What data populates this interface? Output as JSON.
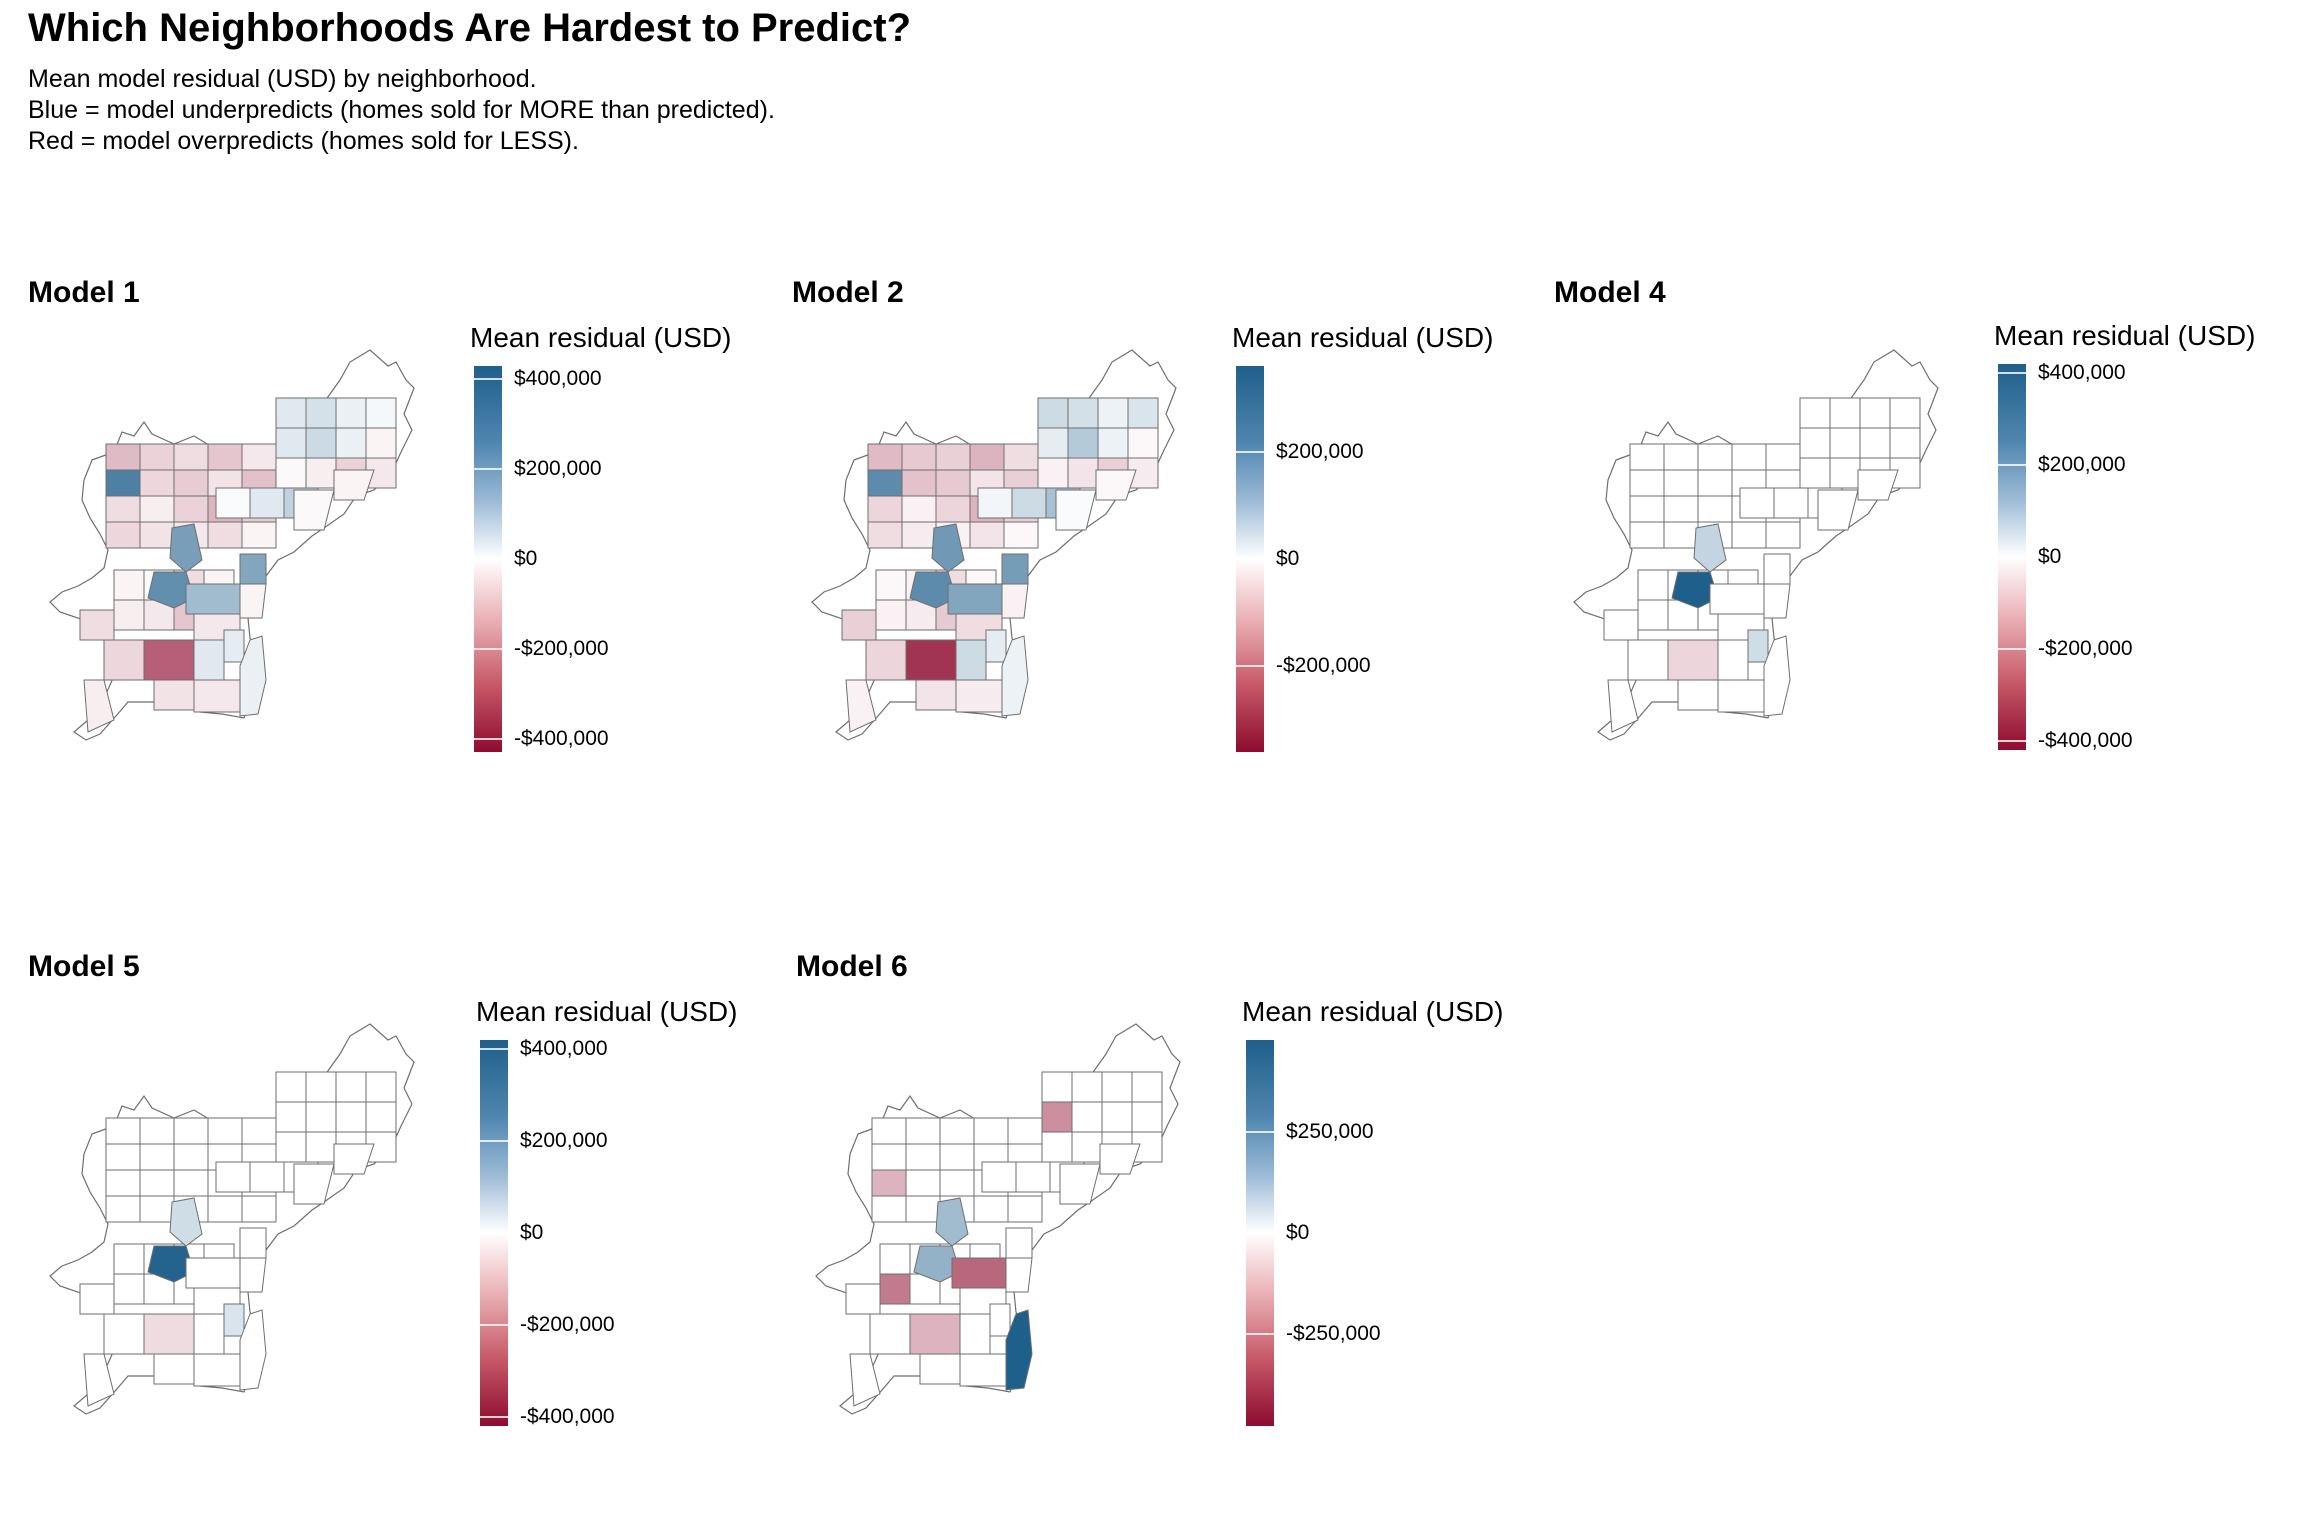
{
  "title": "Which Neighborhoods Are Hardest to Predict?",
  "subtitle": [
    "Mean model residual (USD) by neighborhood.",
    "Blue = model underpredicts (homes sold for MORE than predicted).",
    "Red = model overpredicts (homes sold for LESS)."
  ],
  "colors": {
    "positive": "#1f5f8b",
    "zero": "#ffffff",
    "negative": "#8e0b2f",
    "border": "#6e6e6e"
  },
  "panels": [
    {
      "title": "Model 1",
      "legend_title": "Mean residual (USD)",
      "scale_range": [
        -430000,
        430000
      ],
      "ticks": [
        {
          "value": 400000,
          "label": "$400,000"
        },
        {
          "value": 200000,
          "label": "$200,000"
        },
        {
          "value": 0,
          "label": "$0"
        },
        {
          "value": -200000,
          "label": "-$200,000"
        },
        {
          "value": -400000,
          "label": "-$400,000"
        }
      ],
      "region_residuals": [
        -120000,
        -80000,
        -60000,
        -100000,
        -40000,
        340000,
        -70000,
        -90000,
        -50000,
        -110000,
        -60000,
        -30000,
        -80000,
        -130000,
        -90000,
        -70000,
        -50000,
        -40000,
        -60000,
        -20000,
        60000,
        80000,
        40000,
        20000,
        60000,
        100000,
        40000,
        -20000,
        -10000,
        -30000,
        -80000,
        -40000,
        -20000,
        -10000,
        -60000,
        -20000,
        -30000,
        -40000,
        -100000,
        -20000,
        10000,
        60000,
        120000,
        260000,
        300000,
        240000,
        180000,
        -40000,
        -60000,
        -20000,
        50000,
        40000,
        -280000,
        60000,
        -70000,
        -50000,
        -40000,
        -30000,
        -20000,
        -10000
      ]
    },
    {
      "title": "Model 2",
      "legend_title": "Mean residual (USD)",
      "scale_range": [
        -360000,
        360000
      ],
      "ticks": [
        {
          "value": 200000,
          "label": "$200,000"
        },
        {
          "value": 0,
          "label": "$0"
        },
        {
          "value": -200000,
          "label": "-$200,000"
        }
      ],
      "region_residuals": [
        -100000,
        -80000,
        -70000,
        -110000,
        -50000,
        260000,
        -90000,
        -80000,
        -40000,
        -70000,
        -60000,
        -20000,
        -60000,
        -110000,
        -70000,
        -50000,
        -30000,
        -20000,
        -40000,
        -10000,
        80000,
        70000,
        30000,
        60000,
        40000,
        120000,
        30000,
        -10000,
        -20000,
        -40000,
        -70000,
        -30000,
        -10000,
        -20000,
        -50000,
        -10000,
        -20000,
        -30000,
        -80000,
        -10000,
        20000,
        80000,
        140000,
        230000,
        260000,
        220000,
        200000,
        -50000,
        -70000,
        -20000,
        40000,
        30000,
        -300000,
        80000,
        -60000,
        -40000,
        -30000,
        -20000,
        -10000,
        10000
      ]
    },
    {
      "title": "Model 4",
      "legend_title": "Mean residual (USD)",
      "scale_range": [
        -420000,
        420000
      ],
      "ticks": [
        {
          "value": 400000,
          "label": "$400,000"
        },
        {
          "value": 200000,
          "label": "$200,000"
        },
        {
          "value": 0,
          "label": "$0"
        },
        {
          "value": -200000,
          "label": "-$200,000"
        },
        {
          "value": -400000,
          "label": "-$400,000"
        }
      ],
      "region_residuals": [
        0,
        0,
        0,
        0,
        0,
        0,
        0,
        0,
        0,
        0,
        0,
        0,
        0,
        0,
        0,
        0,
        0,
        0,
        0,
        0,
        0,
        0,
        0,
        0,
        0,
        0,
        0,
        0,
        0,
        0,
        0,
        0,
        0,
        0,
        0,
        0,
        0,
        0,
        0,
        0,
        0,
        0,
        0,
        110000,
        420000,
        0,
        0,
        0,
        0,
        0,
        90000,
        0,
        -70000,
        0,
        0,
        0,
        0,
        0,
        0,
        0
      ]
    },
    {
      "title": "Model 5",
      "legend_title": "Mean residual (USD)",
      "scale_range": [
        -420000,
        420000
      ],
      "ticks": [
        {
          "value": 400000,
          "label": "$400,000"
        },
        {
          "value": 200000,
          "label": "$200,000"
        },
        {
          "value": 0,
          "label": "$0"
        },
        {
          "value": -200000,
          "label": "-$200,000"
        },
        {
          "value": -400000,
          "label": "-$400,000"
        }
      ],
      "region_residuals": [
        0,
        0,
        0,
        0,
        0,
        0,
        0,
        0,
        0,
        0,
        0,
        0,
        0,
        0,
        0,
        0,
        0,
        0,
        0,
        0,
        0,
        0,
        0,
        0,
        0,
        0,
        0,
        0,
        0,
        0,
        0,
        0,
        0,
        0,
        0,
        0,
        0,
        0,
        0,
        0,
        0,
        0,
        0,
        90000,
        410000,
        0,
        0,
        0,
        0,
        0,
        70000,
        0,
        -60000,
        0,
        0,
        0,
        0,
        0,
        0,
        0
      ]
    },
    {
      "title": "Model 6",
      "legend_title": "Mean residual (USD)",
      "scale_range": [
        -480000,
        480000
      ],
      "ticks": [
        {
          "value": 250000,
          "label": "$250,000"
        },
        {
          "value": 0,
          "label": "$0"
        },
        {
          "value": -250000,
          "label": "-$250,000"
        }
      ],
      "region_residuals": [
        0,
        0,
        0,
        0,
        0,
        0,
        0,
        0,
        0,
        0,
        -150000,
        0,
        0,
        0,
        0,
        0,
        0,
        0,
        0,
        0,
        0,
        0,
        0,
        0,
        -220000,
        0,
        0,
        0,
        0,
        0,
        0,
        0,
        0,
        0,
        0,
        0,
        -260000,
        0,
        0,
        0,
        0,
        0,
        0,
        200000,
        230000,
        0,
        -300000,
        0,
        0,
        0,
        0,
        480000,
        -150000,
        0,
        0,
        0,
        0,
        0,
        0,
        0
      ]
    }
  ]
}
